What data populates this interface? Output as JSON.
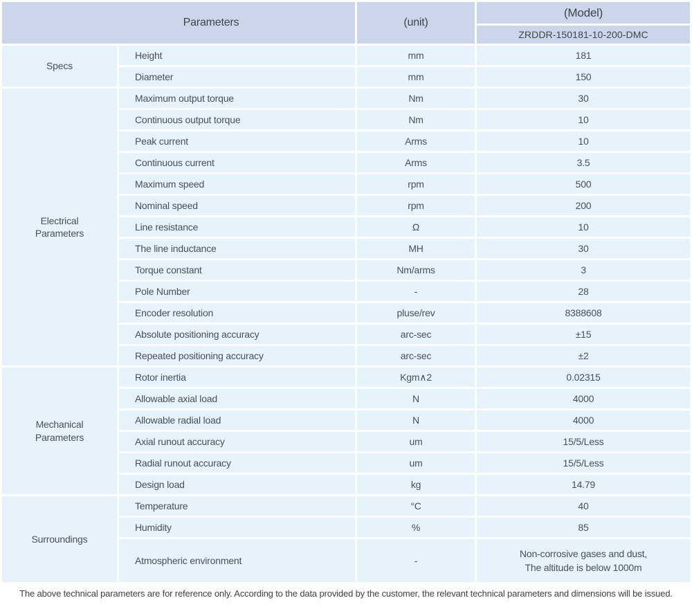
{
  "table": {
    "header": {
      "parameters_label": "Parameters",
      "unit_label": "(unit)",
      "model_label": "(Model)",
      "model_value": "ZRDDR-150181-10-200-DMC"
    },
    "groups": [
      {
        "category": "Specs",
        "rows": [
          {
            "name": "Height",
            "unit": "mm",
            "value": "181"
          },
          {
            "name": "Diameter",
            "unit": "mm",
            "value": "150"
          }
        ]
      },
      {
        "category": "Electrical\nParameters",
        "rows": [
          {
            "name": "Maximum output torque",
            "unit": "Nm",
            "value": "30"
          },
          {
            "name": "Continuous output torque",
            "unit": "Nm",
            "value": "10"
          },
          {
            "name": "Peak current",
            "unit": "Arms",
            "value": "10"
          },
          {
            "name": "Continuous current",
            "unit": "Arms",
            "value": "3.5"
          },
          {
            "name": "Maximum speed",
            "unit": "rpm",
            "value": "500"
          },
          {
            "name": "Nominal speed",
            "unit": "rpm",
            "value": "200"
          },
          {
            "name": "Line resistance",
            "unit": "Ω",
            "value": "10"
          },
          {
            "name": "The line inductance",
            "unit": "MH",
            "value": "30"
          },
          {
            "name": "Torque constant",
            "unit": "Nm/arms",
            "value": "3"
          },
          {
            "name": "Pole Number",
            "unit": "-",
            "value": "28"
          },
          {
            "name": "Encoder resolution",
            "unit": "pluse/rev",
            "value": "8388608"
          },
          {
            "name": "Absolute positioning accuracy",
            "unit": "arc-sec",
            "value": "±15"
          },
          {
            "name": "Repeated positioning accuracy",
            "unit": "arc-sec",
            "value": "±2"
          }
        ]
      },
      {
        "category": "Mechanical\nParameters",
        "rows": [
          {
            "name": "Rotor inertia",
            "unit": "Kgm∧2",
            "value": "0.02315"
          },
          {
            "name": "Allowable axial load",
            "unit": "N",
            "value": "4000"
          },
          {
            "name": "Allowable radial load",
            "unit": "N",
            "value": "4000"
          },
          {
            "name": "Axial runout accuracy",
            "unit": "um",
            "value": "15/5/Less"
          },
          {
            "name": "Radial runout accuracy",
            "unit": "um",
            "value": "15/5/Less"
          },
          {
            "name": "Design load",
            "unit": "kg",
            "value": "14.79"
          }
        ]
      },
      {
        "category": "Surroundings",
        "rows": [
          {
            "name": "Temperature",
            "unit": "°C",
            "value": "40"
          },
          {
            "name": "Humidity",
            "unit": "%",
            "value": "85"
          },
          {
            "name": "Atmospheric environment",
            "unit": "-",
            "value": "Non-corrosive gases and dust,\nThe altitude is below 1000m"
          }
        ]
      }
    ],
    "footnote": "The above technical parameters are for reference only. According to the data provided by the customer, the relevant technical parameters and dimensions will be issued."
  },
  "colors": {
    "header_bg": "#ccd6eb",
    "cell_bg": "#e6f3fb",
    "header_text": "#3e434a",
    "cell_text": "#4a4f55",
    "footnote_text": "#3f3f3f",
    "gap": "#ffffff"
  }
}
